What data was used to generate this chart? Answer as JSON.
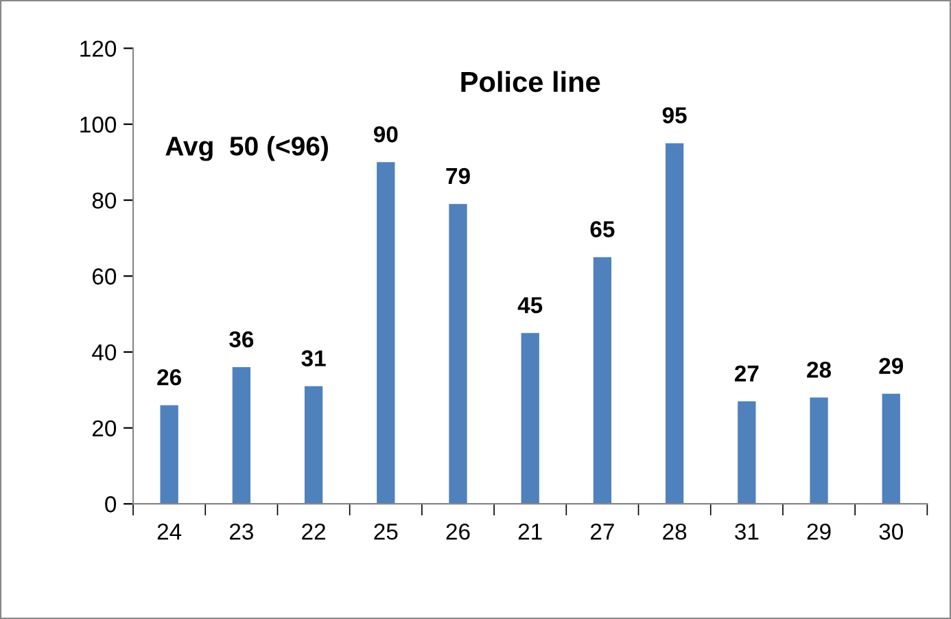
{
  "chart_data": {
    "type": "bar",
    "title": "Police line",
    "annotations": [
      "Avg  50 (<96)"
    ],
    "categories": [
      "24",
      "23",
      "22",
      "25",
      "26",
      "21",
      "27",
      "28",
      "31",
      "29",
      "30"
    ],
    "values": [
      26,
      36,
      31,
      90,
      79,
      45,
      65,
      95,
      27,
      28,
      29
    ],
    "color": "#4f81bd",
    "ylim": [
      0,
      120
    ],
    "yticks": [
      0,
      20,
      40,
      60,
      80,
      100,
      120
    ],
    "data_labels": true,
    "grid": false,
    "legend": false
  }
}
